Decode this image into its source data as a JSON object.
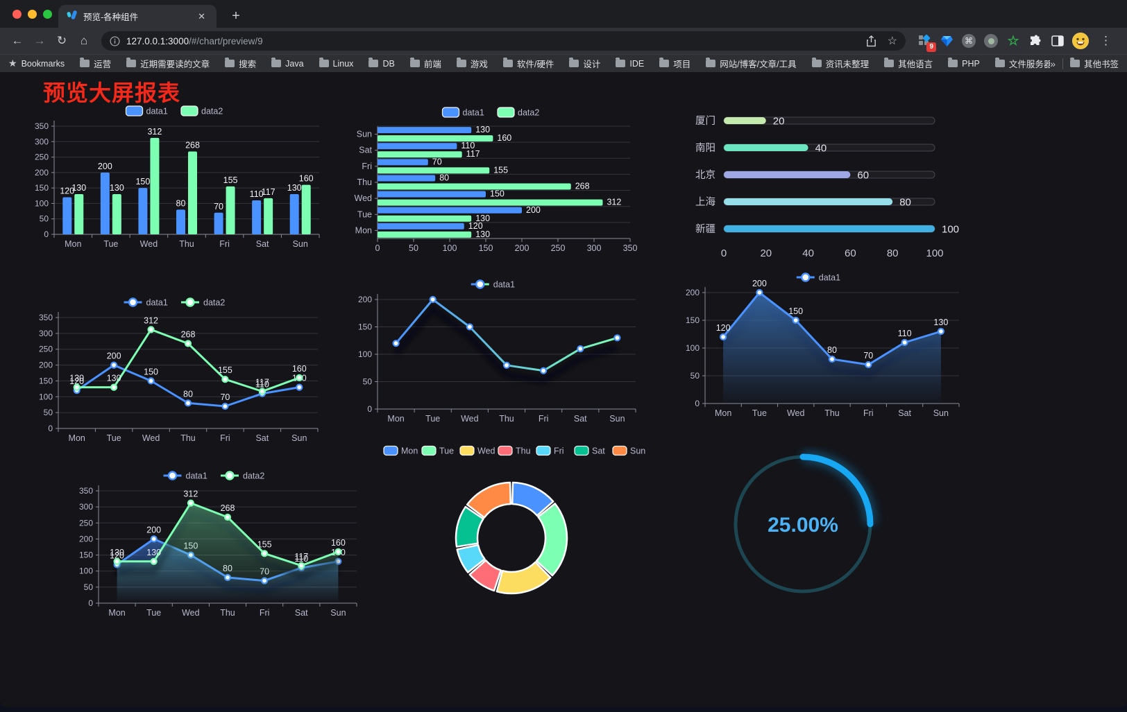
{
  "browser": {
    "tab": {
      "title": "预览-各种组件"
    },
    "url_host": "127.0.0.1:3000",
    "url_path": "/#/chart/preview/9",
    "extension_badge": "9",
    "bookmarks_label": "Bookmarks",
    "bookmarks": [
      "运营",
      "近期需要读的文章",
      "搜索",
      "Java",
      "Linux",
      "DB",
      "前端",
      "游戏",
      "软件/硬件",
      "设计",
      "IDE",
      "项目",
      "网站/博客/文章/工具",
      "资讯未整理",
      "其他语言",
      "PHP",
      "文件服务器"
    ],
    "bookmarks_overflow": "»",
    "other_bookmarks": "其他书签"
  },
  "icons": {
    "back": "←",
    "forward": "→",
    "reload": "↻",
    "home": "⌂",
    "close": "✕",
    "plus": "+",
    "url_star": "☆",
    "bookmarks_star": "★",
    "menu": "⋮",
    "cmd": "⌘",
    "ext_star": "☆"
  },
  "page": {
    "title": "预览大屏报表"
  },
  "chart_data": [
    {
      "id": "bar-grouped",
      "type": "bar",
      "categories": [
        "Mon",
        "Tue",
        "Wed",
        "Thu",
        "Fri",
        "Sat",
        "Sun"
      ],
      "series": [
        {
          "name": "data1",
          "color": "#4992ff",
          "values": [
            120,
            200,
            150,
            80,
            70,
            110,
            130
          ]
        },
        {
          "name": "data2",
          "color": "#7cffb2",
          "values": [
            130,
            130,
            312,
            268,
            155,
            117,
            160
          ]
        }
      ],
      "ylim": [
        0,
        350
      ],
      "yticks": [
        0,
        50,
        100,
        150,
        200,
        250,
        300,
        350
      ],
      "legend_position": "top",
      "grid": true
    },
    {
      "id": "bar-horizontal",
      "type": "hbar",
      "categories": [
        "Mon",
        "Tue",
        "Wed",
        "Thu",
        "Fri",
        "Sat",
        "Sun"
      ],
      "series": [
        {
          "name": "data1",
          "color": "#4992ff",
          "values": [
            120,
            200,
            150,
            80,
            70,
            110,
            130
          ]
        },
        {
          "name": "data2",
          "color": "#7cffb2",
          "values": [
            130,
            130,
            312,
            268,
            155,
            117,
            160
          ]
        }
      ],
      "xlim": [
        0,
        350
      ],
      "xticks": [
        0,
        50,
        100,
        150,
        200,
        250,
        300,
        350
      ],
      "legend_position": "top"
    },
    {
      "id": "capsule-progress",
      "type": "progress",
      "max": 100,
      "xticks": [
        0,
        20,
        40,
        60,
        80,
        100
      ],
      "items": [
        {
          "label": "厦门",
          "value": 20,
          "color": "#c4ebad"
        },
        {
          "label": "南阳",
          "value": 40,
          "color": "#6be6c1"
        },
        {
          "label": "北京",
          "value": 60,
          "color": "#a0a7e6"
        },
        {
          "label": "上海",
          "value": 80,
          "color": "#96dee8"
        },
        {
          "label": "新疆",
          "value": 100,
          "color": "#3fb1e3"
        }
      ]
    },
    {
      "id": "line-two",
      "type": "line",
      "categories": [
        "Mon",
        "Tue",
        "Wed",
        "Thu",
        "Fri",
        "Sat",
        "Sun"
      ],
      "series": [
        {
          "name": "data1",
          "color": "#4992ff",
          "values": [
            120,
            200,
            150,
            80,
            70,
            110,
            130
          ]
        },
        {
          "name": "data2",
          "color": "#7cffb2",
          "values": [
            130,
            130,
            312,
            268,
            155,
            117,
            160
          ]
        }
      ],
      "ylim": [
        0,
        350
      ],
      "yticks": [
        0,
        50,
        100,
        150,
        200,
        250,
        300,
        350
      ],
      "point_labels": true
    },
    {
      "id": "line-gradient",
      "type": "line",
      "categories": [
        "Mon",
        "Tue",
        "Wed",
        "Thu",
        "Fri",
        "Sat",
        "Sun"
      ],
      "series": [
        {
          "name": "data1",
          "color": "#4992ff",
          "gradient": [
            "#4992ff",
            "#7cffb2"
          ],
          "values": [
            120,
            200,
            150,
            80,
            70,
            110,
            130
          ]
        }
      ],
      "ylim": [
        0,
        200
      ],
      "yticks": [
        0,
        50,
        100,
        150,
        200
      ],
      "point_labels": false,
      "shadow": true
    },
    {
      "id": "area-single",
      "type": "line",
      "categories": [
        "Mon",
        "Tue",
        "Wed",
        "Thu",
        "Fri",
        "Sat",
        "Sun"
      ],
      "series": [
        {
          "name": "data1",
          "color": "#4992ff",
          "area": [
            "rgba(54,106,170,0.9)",
            "rgba(54,106,170,0.03)"
          ],
          "values": [
            120,
            200,
            150,
            80,
            70,
            110,
            130
          ]
        }
      ],
      "ylim": [
        0,
        200
      ],
      "yticks": [
        0,
        50,
        100,
        150,
        200
      ],
      "point_labels": true,
      "shadow": true
    },
    {
      "id": "area-two",
      "type": "line",
      "categories": [
        "Mon",
        "Tue",
        "Wed",
        "Thu",
        "Fri",
        "Sat",
        "Sun"
      ],
      "series": [
        {
          "name": "data1",
          "color": "#4992ff",
          "area": [
            "rgba(73,146,255,0.5)",
            "rgba(73,146,255,0)"
          ],
          "values": [
            120,
            200,
            150,
            80,
            70,
            110,
            130
          ]
        },
        {
          "name": "data2",
          "color": "#7cffb2",
          "area": [
            "rgba(110,220,160,0.45)",
            "rgba(110,220,160,0)"
          ],
          "values": [
            130,
            130,
            312,
            268,
            155,
            117,
            160
          ]
        }
      ],
      "ylim": [
        0,
        350
      ],
      "yticks": [
        0,
        50,
        100,
        150,
        200,
        250,
        300,
        350
      ],
      "point_labels": true,
      "shadow": true
    },
    {
      "id": "donut",
      "type": "pie",
      "inner_radius": 49,
      "outer_radius": 80,
      "items": [
        {
          "label": "Mon",
          "value": 120,
          "color": "#4992ff"
        },
        {
          "label": "Tue",
          "value": 200,
          "color": "#7cffb2"
        },
        {
          "label": "Wed",
          "value": 150,
          "color": "#fddd60"
        },
        {
          "label": "Thu",
          "value": 80,
          "color": "#ff6e76"
        },
        {
          "label": "Fri",
          "value": 70,
          "color": "#58d9f9"
        },
        {
          "label": "Sat",
          "value": 110,
          "color": "#05c091"
        },
        {
          "label": "Sun",
          "value": 130,
          "color": "#ff8a45"
        }
      ]
    },
    {
      "id": "gauge",
      "type": "gauge",
      "value": 25,
      "max": 100,
      "display": "25.00%",
      "color": "#18a7f2",
      "track_color": "#1c4752",
      "text_color": "#4ab2f5"
    }
  ]
}
